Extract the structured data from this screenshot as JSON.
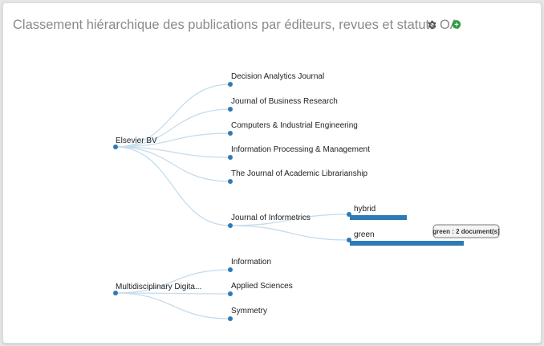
{
  "panel": {
    "title": "Classement hiérarchique des publications par éditeurs, revues et statuts OA",
    "settings_icon": "gear-icon",
    "chat_icon": "chat-bubble-icon",
    "chat_icon_color": "#2e9e3e",
    "settings_icon_color": "#555555"
  },
  "tree": {
    "link_color": "#c5dcec",
    "node_color": "#2e7ab6",
    "bar_color": "#2e7ab6",
    "publishers": [
      {
        "label": "Elsevier BV",
        "journals": [
          {
            "label": "Decision Analytics Journal",
            "oa": []
          },
          {
            "label": "Journal of Business Research",
            "oa": []
          },
          {
            "label": "Computers & Industrial Engineering",
            "oa": []
          },
          {
            "label": "Information Processing & Management",
            "oa": []
          },
          {
            "label": "The Journal of Academic Librarianship",
            "oa": []
          },
          {
            "label": "Journal of Informetrics",
            "oa": [
              {
                "label": "hybrid",
                "documents": 1
              },
              {
                "label": "green",
                "documents": 2
              }
            ]
          }
        ]
      },
      {
        "label": "Multidisciplinary Digita...",
        "journals": [
          {
            "label": "Information",
            "oa": []
          },
          {
            "label": "Applied Sciences",
            "oa": []
          },
          {
            "label": "Symmetry",
            "oa": []
          }
        ]
      }
    ],
    "tooltip": "green : 2 document(s)"
  }
}
